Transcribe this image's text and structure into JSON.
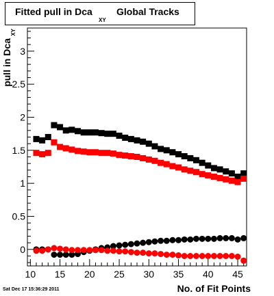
{
  "chart_data": {
    "type": "scatter",
    "title": "Fitted pull in Dca",
    "title_subscript": "XY",
    "title_suffix": "Global Tracks",
    "xlabel": "No. of Fit Points",
    "ylabel": "pull in Dca",
    "ylabel_subscript": "XY",
    "xlim": [
      9.5,
      46.5
    ],
    "ylim": [
      -0.25,
      3.35
    ],
    "x_ticks": [
      10,
      15,
      20,
      25,
      30,
      35,
      40,
      45
    ],
    "y_ticks": [
      0,
      0.5,
      1,
      1.5,
      2,
      2.5,
      3
    ],
    "x_tick_labels": [
      "10",
      "15",
      "20",
      "25",
      "30",
      "35",
      "40",
      "45"
    ],
    "y_tick_labels": [
      "0",
      "0.5",
      "1",
      "1.5",
      "2",
      "2.5",
      "3"
    ],
    "grid": false,
    "series": [
      {
        "marker": "square",
        "color": "#000000",
        "x": [
          11,
          12,
          13,
          14,
          15,
          16,
          17,
          18,
          19,
          20,
          21,
          22,
          23,
          24,
          25,
          26,
          27,
          28,
          29,
          30,
          31,
          32,
          33,
          34,
          35,
          36,
          37,
          38,
          39,
          40,
          41,
          42,
          43,
          44,
          45,
          46
        ],
        "y": [
          1.67,
          1.65,
          1.7,
          1.88,
          1.85,
          1.8,
          1.81,
          1.79,
          1.77,
          1.77,
          1.77,
          1.76,
          1.75,
          1.75,
          1.72,
          1.69,
          1.67,
          1.65,
          1.63,
          1.6,
          1.56,
          1.52,
          1.5,
          1.47,
          1.44,
          1.41,
          1.38,
          1.35,
          1.31,
          1.27,
          1.23,
          1.21,
          1.18,
          1.15,
          1.1,
          1.15
        ]
      },
      {
        "marker": "square",
        "color": "#ff0000",
        "x": [
          11,
          12,
          13,
          14,
          15,
          16,
          17,
          18,
          19,
          20,
          21,
          22,
          23,
          24,
          25,
          26,
          27,
          28,
          29,
          30,
          31,
          32,
          33,
          34,
          35,
          36,
          37,
          38,
          39,
          40,
          41,
          42,
          43,
          44,
          45,
          46
        ],
        "y": [
          1.46,
          1.44,
          1.46,
          1.62,
          1.55,
          1.53,
          1.51,
          1.49,
          1.48,
          1.47,
          1.47,
          1.46,
          1.46,
          1.45,
          1.43,
          1.42,
          1.41,
          1.4,
          1.38,
          1.36,
          1.34,
          1.31,
          1.29,
          1.26,
          1.24,
          1.21,
          1.19,
          1.17,
          1.14,
          1.12,
          1.1,
          1.08,
          1.06,
          1.04,
          1.02,
          1.07
        ]
      },
      {
        "marker": "circle",
        "color": "#000000",
        "x": [
          11,
          12,
          13,
          14,
          15,
          16,
          17,
          18,
          19,
          20,
          21,
          22,
          23,
          24,
          25,
          26,
          27,
          28,
          29,
          30,
          31,
          32,
          33,
          34,
          35,
          36,
          37,
          38,
          39,
          40,
          41,
          42,
          43,
          44,
          45,
          46
        ],
        "y": [
          0.0,
          0.0,
          0.0,
          -0.08,
          -0.08,
          -0.08,
          -0.08,
          -0.07,
          -0.04,
          -0.02,
          0.0,
          0.02,
          0.03,
          0.05,
          0.06,
          0.07,
          0.08,
          0.09,
          0.1,
          0.11,
          0.12,
          0.13,
          0.13,
          0.14,
          0.14,
          0.15,
          0.15,
          0.16,
          0.16,
          0.16,
          0.16,
          0.17,
          0.17,
          0.17,
          0.15,
          0.17
        ]
      },
      {
        "marker": "circle",
        "color": "#ff0000",
        "x": [
          11,
          12,
          13,
          14,
          15,
          16,
          17,
          18,
          19,
          20,
          21,
          22,
          23,
          24,
          25,
          26,
          27,
          28,
          29,
          30,
          31,
          32,
          33,
          34,
          35,
          36,
          37,
          38,
          39,
          40,
          41,
          42,
          43,
          44,
          45,
          46
        ],
        "y": [
          -0.02,
          -0.02,
          0.0,
          0.02,
          0.01,
          0.0,
          -0.01,
          -0.01,
          -0.01,
          -0.01,
          -0.01,
          -0.01,
          -0.02,
          -0.02,
          -0.03,
          -0.03,
          -0.04,
          -0.05,
          -0.05,
          -0.06,
          -0.06,
          -0.07,
          -0.08,
          -0.08,
          -0.09,
          -0.1,
          -0.1,
          -0.1,
          -0.1,
          -0.1,
          -0.1,
          -0.1,
          -0.1,
          -0.1,
          -0.11,
          -0.17
        ]
      }
    ]
  },
  "timestamp": "Sat Dec 17 15:36:29 2011"
}
